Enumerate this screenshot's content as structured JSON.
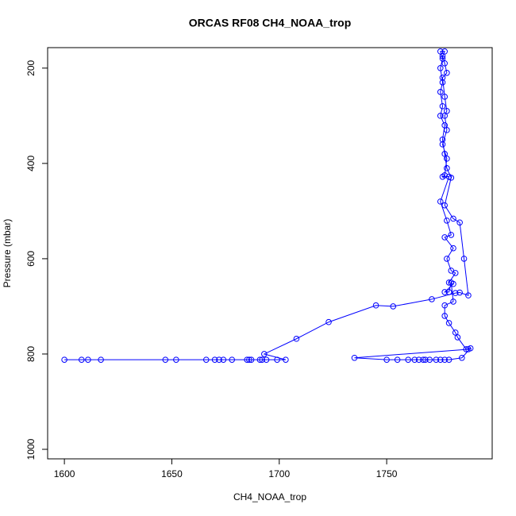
{
  "chart_data": {
    "type": "line",
    "title": "ORCAS RF08 CH4_NOAA_trop",
    "x_label": "CH4_NOAA_trop",
    "y_label": "Pressure (mbar)",
    "color": "#0000ff",
    "markers": "open-circle",
    "xlim": [
      1592.2,
      1799.1
    ],
    "ylim": [
      1020,
      157
    ],
    "xticks": [
      1600,
      1650,
      1700,
      1750
    ],
    "yticks": [
      200,
      400,
      600,
      800,
      1000
    ],
    "x": [
      1600,
      1608,
      1611,
      1617,
      1647,
      1652,
      1666,
      1670,
      1672,
      1674,
      1678,
      1685,
      1686,
      1687,
      1691,
      1692,
      1694,
      1699,
      1703,
      1693,
      1708,
      1723,
      1745,
      1753,
      1771,
      1782,
      1784,
      1788,
      1786,
      1784,
      1781,
      1777,
      1780,
      1778,
      1777,
      1776,
      1777,
      1775,
      1776,
      1775,
      1776,
      1775,
      1776,
      1775,
      1777,
      1776,
      1777,
      1778,
      1776,
      1777,
      1778,
      1777,
      1778,
      1776,
      1778,
      1777,
      1776,
      1779,
      1775,
      1778,
      1780,
      1777,
      1781,
      1778,
      1780,
      1782,
      1779,
      1781,
      1777,
      1779,
      1780,
      1781,
      1777,
      1777,
      1779,
      1782,
      1783,
      1787,
      1789,
      1785,
      1779,
      1777,
      1775,
      1773,
      1770,
      1768,
      1767,
      1765,
      1763,
      1760,
      1755,
      1750,
      1735,
      1788
    ],
    "values": [
      812,
      812,
      812,
      812,
      812,
      812,
      812,
      812,
      812,
      812,
      812,
      812,
      812,
      812,
      812,
      812,
      812,
      812,
      812,
      800,
      768,
      733,
      698,
      700,
      685,
      672,
      671,
      677,
      600,
      524,
      516,
      488,
      430,
      410,
      380,
      350,
      320,
      300,
      280,
      250,
      230,
      200,
      180,
      165,
      165,
      175,
      190,
      210,
      220,
      260,
      290,
      300,
      330,
      360,
      390,
      425,
      428,
      428,
      480,
      520,
      550,
      555,
      578,
      600,
      625,
      630,
      650,
      653,
      670,
      670,
      650,
      690,
      698,
      720,
      735,
      755,
      765,
      790,
      788,
      808,
      812,
      812,
      812,
      812,
      812,
      812,
      812,
      812,
      812,
      812,
      812,
      812,
      808,
      790
    ]
  }
}
